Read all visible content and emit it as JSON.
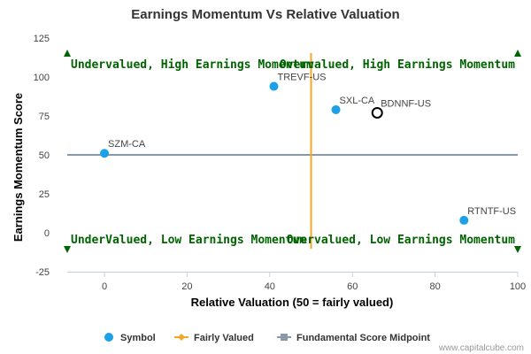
{
  "chart_data": {
    "type": "scatter",
    "title": "Earnings Momentum Vs Relative Valuation",
    "xlabel": "Relative Valuation (50 = fairly valued)",
    "ylabel": "Earnings Momentum Score",
    "xlim": [
      -9,
      100
    ],
    "ylim": [
      -25,
      125
    ],
    "x_ticks": [
      0,
      20,
      40,
      60,
      80,
      100
    ],
    "y_ticks": [
      125,
      100,
      75,
      50,
      25,
      0,
      -25
    ],
    "points": [
      {
        "label": "SZM-CA",
        "x": 0,
        "y": 51,
        "highlight": false
      },
      {
        "label": "TREVF-US",
        "x": 41,
        "y": 94,
        "highlight": false
      },
      {
        "label": "SXL-CA",
        "x": 56,
        "y": 79,
        "highlight": false
      },
      {
        "label": "BDNNF-US",
        "x": 66,
        "y": 77,
        "highlight": true
      },
      {
        "label": "RTNTF-US",
        "x": 87,
        "y": 8,
        "highlight": false
      }
    ],
    "fairly_valued_x": 50,
    "midpoint_y": 50,
    "quadrants": {
      "top_left": "Undervalued, High Earnings Momentum",
      "top_right": "Overvalued, High Earnings Momentum",
      "bottom_left": "UnderValued, Low Earnings Momentum",
      "bottom_right": "Overvalued, Low Earnings Momentum"
    },
    "legend": {
      "placement": "bottom",
      "items": [
        "Symbol",
        "Fairly Valued",
        "Fundamental Score Midpoint"
      ]
    },
    "grid": false
  },
  "colors": {
    "point": "#1ca0e8",
    "fairly_valued": "#f5a623",
    "midpoint": "#8a99a8",
    "quadrant_text": "#006400"
  },
  "credit": "www.capitalcube.com"
}
